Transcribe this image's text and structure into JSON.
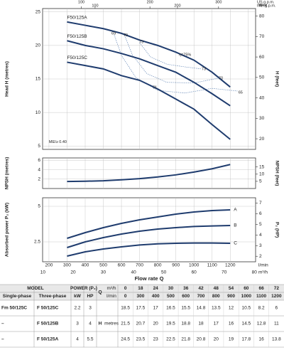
{
  "chart_data": [
    {
      "type": "line",
      "xlim": [
        165,
        1340
      ],
      "xticks": [
        200,
        300,
        400,
        500,
        600,
        700,
        800,
        900,
        1000,
        1100,
        1200,
        1300
      ],
      "ylim": [
        4.5,
        25.5
      ],
      "yticks": [
        5,
        10,
        15,
        20,
        25
      ],
      "ylabel": "Head H (metres)",
      "y2lim": [
        14.8,
        83.7
      ],
      "y2ticks": [
        20,
        30,
        40,
        50,
        60,
        70,
        80
      ],
      "y2label": "H (feet)",
      "y2unit": "feet",
      "top_axes": [
        {
          "unit": "US g.p.m.",
          "lim": [
            43.6,
            354
          ],
          "ticks": [
            100,
            200,
            300
          ]
        },
        {
          "unit": "IMP g.p.m.",
          "lim": [
            36.3,
            294.8
          ],
          "ticks": [
            100,
            200
          ]
        }
      ],
      "grid": true,
      "label_at": "start",
      "series": [
        {
          "name": "F50/125A",
          "color": "#1f3c6e",
          "x": [
            300,
            400,
            500,
            600,
            700,
            800,
            900,
            1000,
            1100,
            1200
          ],
          "values": [
            23.5,
            23,
            22.5,
            21.8,
            20.8,
            20,
            19,
            17.8,
            16,
            13.8
          ]
        },
        {
          "name": "F50/125B",
          "color": "#1f3c6e",
          "x": [
            300,
            400,
            500,
            600,
            700,
            800,
            900,
            1000,
            1100,
            1200
          ],
          "values": [
            20.7,
            20,
            19.5,
            18.8,
            18,
            17,
            16,
            14.5,
            12.8,
            11
          ]
        },
        {
          "name": "F50/125C",
          "color": "#1f3c6e",
          "x": [
            300,
            400,
            500,
            600,
            700,
            800,
            900,
            1000,
            1100,
            1200
          ],
          "values": [
            17.5,
            17,
            16.5,
            15.5,
            14.8,
            13.5,
            12,
            10.5,
            8.2,
            6
          ]
        }
      ],
      "efficiency_curves": [
        {
          "x": [
            560,
            600,
            680,
            800,
            950,
            1100,
            1240
          ],
          "y": [
            21.6,
            18.5,
            15.2,
            13.3,
            12.9,
            13.6,
            13.2
          ]
        },
        {
          "x": [
            620,
            660,
            740,
            850,
            1000,
            1130
          ],
          "y": [
            21.3,
            18.6,
            15.8,
            14.5,
            14.4,
            15.1
          ]
        },
        {
          "x": [
            700,
            760,
            850,
            950,
            1040
          ],
          "y": [
            20.4,
            18.3,
            17.2,
            16.8,
            16.5
          ]
        }
      ],
      "annotations": [
        {
          "text": "69",
          "x": 545,
          "y": 21.8
        },
        {
          "text": "70",
          "x": 611,
          "y": 21.5
        },
        {
          "text": "73",
          "x": 698,
          "y": 20.5
        },
        {
          "text": "η=75%",
          "x": 917,
          "y": 18.6
        },
        {
          "text": "73",
          "x": 1042,
          "y": 16.5
        },
        {
          "text": "70",
          "x": 1136,
          "y": 15.1
        },
        {
          "text": "65",
          "x": 1245,
          "y": 13
        },
        {
          "text": "71",
          "x": 772,
          "y": 13.7
        },
        {
          "text": "MEI≥ 0.40",
          "x": 200,
          "y": 5.6
        }
      ]
    },
    {
      "type": "line",
      "xlim": [
        165,
        1340
      ],
      "xticks": [
        200,
        300,
        400,
        500,
        600,
        700,
        800,
        900,
        1000,
        1100,
        1200,
        1300
      ],
      "ylim": [
        0,
        6.5
      ],
      "yticks": [
        2,
        4,
        6
      ],
      "ylabel": "NPSH (metres)",
      "y2lim": [
        0,
        21.3
      ],
      "y2ticks": [
        5,
        10,
        15
      ],
      "y2label": "NPSH (feet)",
      "grid": true,
      "series": [
        {
          "color": "#1f3c6e",
          "x": [
            300,
            400,
            500,
            600,
            700,
            800,
            900,
            1000,
            1100,
            1200
          ],
          "values": [
            1.5,
            1.55,
            1.65,
            1.85,
            2.1,
            2.45,
            2.9,
            3.5,
            4.2,
            5.1
          ]
        }
      ]
    },
    {
      "type": "line",
      "xlim": [
        165,
        1340
      ],
      "xticks": [
        200,
        300,
        400,
        500,
        600,
        700,
        800,
        900,
        1000,
        1100,
        1200
      ],
      "ylim": [
        1.1,
        5.6
      ],
      "yticks": [
        2.5,
        5
      ],
      "ylabel": "Absorbed power P₂ (kW)",
      "y2lim": [
        1.48,
        7.5
      ],
      "y2ticks": [
        2,
        3,
        4,
        5,
        6,
        7
      ],
      "y2label": "P₂ (HP)",
      "grid": true,
      "label_at": "end",
      "xlabel": "Flow rate Q",
      "xunit": "l/min",
      "x2unit": "m³/h",
      "x2lim": [
        9.9,
        80.4
      ],
      "x2ticks": [
        10,
        20,
        30,
        40,
        50,
        60,
        70,
        80
      ],
      "series": [
        {
          "name": "A",
          "color": "#1f3c6e",
          "x": [
            300,
            400,
            500,
            600,
            700,
            800,
            900,
            1000,
            1100,
            1200
          ],
          "values": [
            2.75,
            3.15,
            3.5,
            3.8,
            4.05,
            4.25,
            4.45,
            4.6,
            4.7,
            4.75
          ]
        },
        {
          "name": "B",
          "color": "#1f3c6e",
          "x": [
            300,
            400,
            500,
            600,
            700,
            800,
            900,
            1000,
            1100,
            1200
          ],
          "values": [
            2.1,
            2.5,
            2.8,
            3.05,
            3.25,
            3.4,
            3.5,
            3.58,
            3.62,
            3.65
          ]
        },
        {
          "name": "C",
          "color": "#1f3c6e",
          "x": [
            300,
            400,
            500,
            600,
            700,
            800,
            900,
            1000,
            1100,
            1200
          ],
          "values": [
            1.5,
            1.8,
            2.0,
            2.15,
            2.28,
            2.36,
            2.4,
            2.42,
            2.42,
            2.4
          ]
        }
      ]
    }
  ],
  "table": {
    "model": "MODEL",
    "single_phase": "Single-phase",
    "three_phase": "Three-phase",
    "power": "POWER (P₂)",
    "kw": "kW",
    "hp": "HP",
    "q": "Q",
    "m3h": "m³/h",
    "lmin": "l/min",
    "h": "H",
    "metres": "metres",
    "q_m3h": [
      0,
      18,
      24,
      30,
      36,
      42,
      48,
      54,
      60,
      66,
      72
    ],
    "q_lmin": [
      0,
      300,
      400,
      500,
      600,
      700,
      800,
      900,
      1000,
      1100,
      1200
    ],
    "rows": [
      {
        "single": "Fm 50/125C",
        "three": "F 50/125C",
        "kw": 2.2,
        "hp": 3,
        "h": [
          18.5,
          17.5,
          17,
          16.5,
          15.5,
          14.8,
          13.5,
          12,
          10.5,
          8.2,
          6
        ]
      },
      {
        "single": "–",
        "three": "F 50/125B",
        "kw": 3,
        "hp": 4,
        "h": [
          21.5,
          20.7,
          20,
          19.5,
          18.8,
          18,
          17,
          16,
          14.5,
          12.8,
          11
        ]
      },
      {
        "single": "–",
        "three": "F 50/125A",
        "kw": 4,
        "hp": 5.5,
        "h": [
          24.5,
          23.5,
          23,
          22.5,
          21.8,
          20.8,
          20,
          19,
          17.8,
          16,
          13.8
        ]
      }
    ]
  }
}
